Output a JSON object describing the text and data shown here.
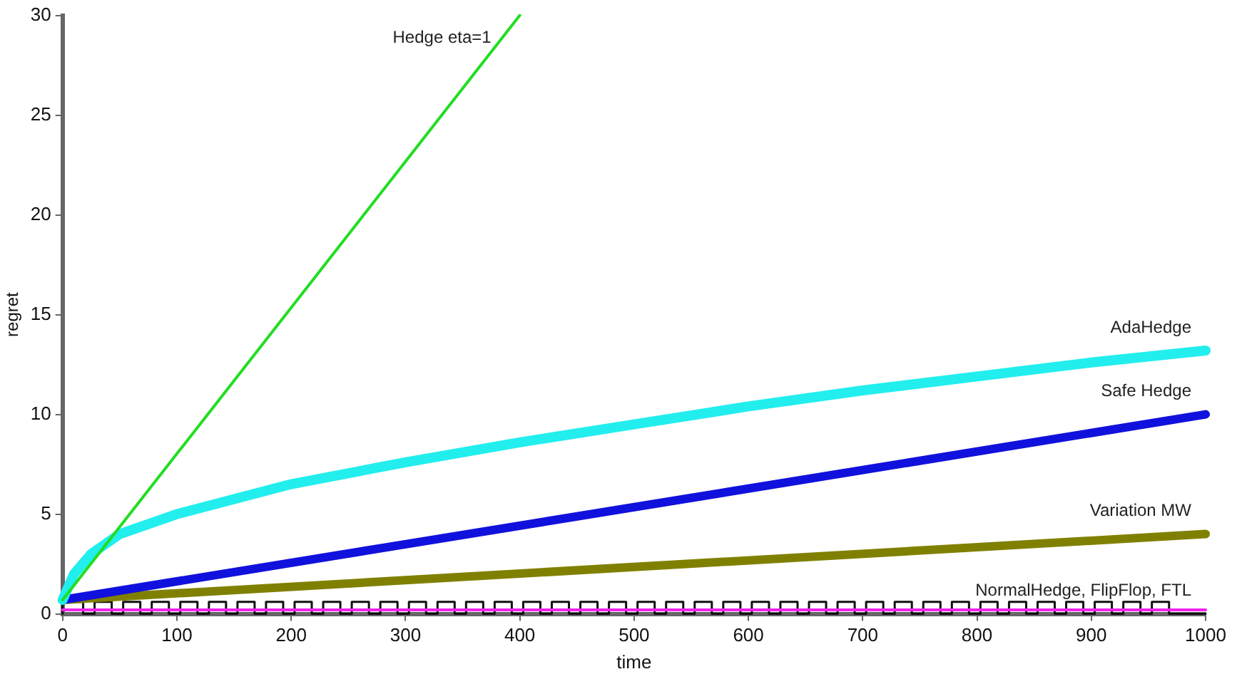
{
  "chart_data": {
    "type": "line",
    "xlabel": "time",
    "ylabel": "regret",
    "xlim": [
      0,
      1000
    ],
    "xticks": [
      0,
      100,
      200,
      300,
      400,
      500,
      600,
      700,
      800,
      900,
      1000
    ],
    "ylim": [
      0,
      30
    ],
    "yticks": [
      0,
      5,
      10,
      15,
      20,
      25,
      30
    ],
    "grid": false,
    "legend": false,
    "series": [
      {
        "name": "Hedge eta=1",
        "color": "#22dd22",
        "x": [
          0,
          400
        ],
        "values": [
          0.7,
          30
        ]
      },
      {
        "name": "AdaHedge",
        "color": "#22eeee",
        "x": [
          0,
          10,
          25,
          50,
          100,
          200,
          300,
          400,
          500,
          600,
          700,
          800,
          900,
          1000
        ],
        "values": [
          0.7,
          2.0,
          3.0,
          4.0,
          5.0,
          6.5,
          7.6,
          8.6,
          9.5,
          10.4,
          11.2,
          11.9,
          12.6,
          13.2
        ]
      },
      {
        "name": "Safe Hedge",
        "color": "#1111dd",
        "x": [
          0,
          1000
        ],
        "values": [
          0.7,
          10
        ]
      },
      {
        "name": "Variation MW",
        "color": "#808000",
        "x": [
          0,
          1000
        ],
        "values": [
          0.7,
          4
        ]
      },
      {
        "color": "#ee22ee",
        "x": [
          0,
          1000
        ],
        "values": [
          0.2,
          0.2
        ]
      },
      {
        "name": "NormalHedge, FlipFlop, FTL",
        "type": "step",
        "color": "#111111",
        "x": [
          0,
          18,
          28,
          43,
          53,
          68,
          78,
          93,
          103,
          118,
          128,
          143,
          153,
          168,
          178,
          193,
          203,
          218,
          228,
          243,
          253,
          268,
          278,
          293,
          303,
          318,
          328,
          343,
          353,
          368,
          378,
          393,
          403,
          418,
          428,
          443,
          453,
          468,
          478,
          493,
          503,
          518,
          528,
          543,
          553,
          568,
          578,
          593,
          603,
          618,
          628,
          643,
          653,
          668,
          678,
          693,
          703,
          718,
          728,
          743,
          753,
          768,
          778,
          793,
          803,
          818,
          828,
          843,
          853,
          868,
          878,
          893,
          903,
          918,
          928,
          943,
          953,
          968,
          978,
          1000
        ],
        "values": [
          0,
          0.6,
          0,
          0.6,
          0,
          0.6,
          0,
          0.6,
          0,
          0.6,
          0,
          0.6,
          0,
          0.6,
          0,
          0.6,
          0,
          0.6,
          0,
          0.6,
          0,
          0.6,
          0,
          0.6,
          0,
          0.6,
          0,
          0.6,
          0,
          0.6,
          0,
          0.6,
          0,
          0.6,
          0,
          0.6,
          0,
          0.6,
          0,
          0.6,
          0,
          0.6,
          0,
          0.6,
          0,
          0.6,
          0,
          0.6,
          0,
          0.6,
          0,
          0.6,
          0,
          0.6,
          0,
          0.6,
          0,
          0.6,
          0,
          0.6,
          0,
          0.6,
          0,
          0.6,
          0,
          0.6,
          0,
          0.6,
          0,
          0.6,
          0,
          0.6,
          0,
          0.6,
          0,
          0.6,
          0,
          0.6,
          0,
          0
        ]
      }
    ]
  }
}
